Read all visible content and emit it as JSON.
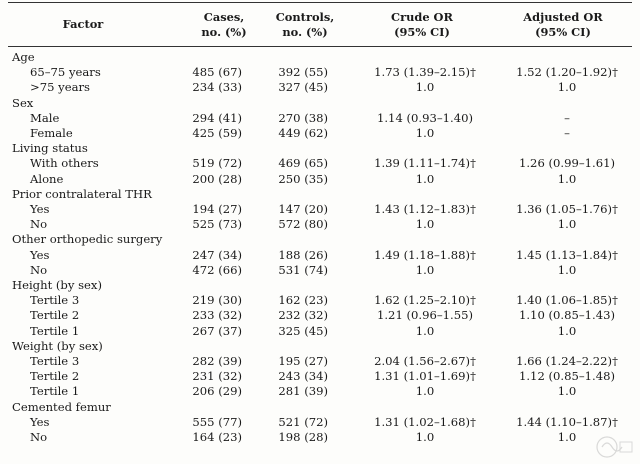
{
  "headers": {
    "factor": "Factor",
    "cases_1": "Cases,",
    "cases_2": "no. (%)",
    "controls_1": "Controls,",
    "controls_2": "no. (%)",
    "crude_1": "Crude OR",
    "crude_2": "(95% CI)",
    "adjusted_1": "Adjusted OR",
    "adjusted_2": "(95% CI)"
  },
  "rows": [
    {
      "type": "group",
      "label": "Age",
      "cases": "",
      "controls": "",
      "crude": "",
      "adjusted": ""
    },
    {
      "type": "sub",
      "label": "65–75 years",
      "cases": "485 (67)",
      "controls": "392 (55)",
      "crude": "1.73 (1.39–2.15)†",
      "adjusted": "1.52 (1.20–1.92)†"
    },
    {
      "type": "sub",
      "label": ">75 years",
      "cases": "234 (33)",
      "controls": "327 (45)",
      "crude": "1.0",
      "adjusted": "1.0"
    },
    {
      "type": "group",
      "label": "Sex",
      "cases": "",
      "controls": "",
      "crude": "",
      "adjusted": ""
    },
    {
      "type": "sub",
      "label": "Male",
      "cases": "294 (41)",
      "controls": "270 (38)",
      "crude": "1.14 (0.93–1.40)",
      "adjusted": "–"
    },
    {
      "type": "sub",
      "label": "Female",
      "cases": "425 (59)",
      "controls": "449 (62)",
      "crude": "1.0",
      "adjusted": "–"
    },
    {
      "type": "group",
      "label": "Living status",
      "cases": "",
      "controls": "",
      "crude": "",
      "adjusted": ""
    },
    {
      "type": "sub",
      "label": "With others",
      "cases": "519 (72)",
      "controls": "469 (65)",
      "crude": "1.39 (1.11–1.74)†",
      "adjusted": "1.26 (0.99–1.61)"
    },
    {
      "type": "sub",
      "label": "Alone",
      "cases": "200 (28)",
      "controls": "250 (35)",
      "crude": "1.0",
      "adjusted": "1.0"
    },
    {
      "type": "group",
      "label": "Prior contralateral THR",
      "cases": "",
      "controls": "",
      "crude": "",
      "adjusted": ""
    },
    {
      "type": "sub",
      "label": "Yes",
      "cases": "194 (27)",
      "controls": "147 (20)",
      "crude": "1.43 (1.12–1.83)†",
      "adjusted": "1.36 (1.05–1.76)†"
    },
    {
      "type": "sub",
      "label": "No",
      "cases": "525 (73)",
      "controls": "572 (80)",
      "crude": "1.0",
      "adjusted": "1.0"
    },
    {
      "type": "group",
      "label": "Other orthopedic surgery",
      "cases": "",
      "controls": "",
      "crude": "",
      "adjusted": ""
    },
    {
      "type": "sub",
      "label": "Yes",
      "cases": "247 (34)",
      "controls": "188 (26)",
      "crude": "1.49 (1.18–1.88)†",
      "adjusted": "1.45 (1.13–1.84)†"
    },
    {
      "type": "sub",
      "label": "No",
      "cases": "472 (66)",
      "controls": "531 (74)",
      "crude": "1.0",
      "adjusted": "1.0"
    },
    {
      "type": "group",
      "label": "Height (by sex)",
      "cases": "",
      "controls": "",
      "crude": "",
      "adjusted": ""
    },
    {
      "type": "sub",
      "label": "Tertile 3",
      "cases": "219 (30)",
      "controls": "162 (23)",
      "crude": "1.62 (1.25–2.10)†",
      "adjusted": "1.40 (1.06–1.85)†"
    },
    {
      "type": "sub",
      "label": "Tertile 2",
      "cases": "233 (32)",
      "controls": "232 (32)",
      "crude": "1.21 (0.96–1.55)",
      "adjusted": "1.10 (0.85–1.43)"
    },
    {
      "type": "sub",
      "label": "Tertile 1",
      "cases": "267 (37)",
      "controls": "325 (45)",
      "crude": "1.0",
      "adjusted": "1.0"
    },
    {
      "type": "group",
      "label": "Weight (by sex)",
      "cases": "",
      "controls": "",
      "crude": "",
      "adjusted": ""
    },
    {
      "type": "sub",
      "label": "Tertile 3",
      "cases": "282 (39)",
      "controls": "195 (27)",
      "crude": "2.04 (1.56–2.67)†",
      "adjusted": "1.66 (1.24–2.22)†"
    },
    {
      "type": "sub",
      "label": "Tertile 2",
      "cases": "231 (32)",
      "controls": "243 (34)",
      "crude": "1.31 (1.01–1.69)†",
      "adjusted": "1.12 (0.85–1.48)"
    },
    {
      "type": "sub",
      "label": "Tertile 1",
      "cases": "206 (29)",
      "controls": "281 (39)",
      "crude": "1.0",
      "adjusted": "1.0"
    },
    {
      "type": "group",
      "label": "Cemented femur",
      "cases": "",
      "controls": "",
      "crude": "",
      "adjusted": ""
    },
    {
      "type": "sub",
      "label": "Yes",
      "cases": "555 (77)",
      "controls": "521 (72)",
      "crude": "1.31 (1.02–1.68)†",
      "adjusted": "1.44 (1.10–1.87)†"
    },
    {
      "type": "sub",
      "label": "No",
      "cases": "164 (23)",
      "controls": "198 (28)",
      "crude": "1.0",
      "adjusted": "1.0"
    }
  ]
}
